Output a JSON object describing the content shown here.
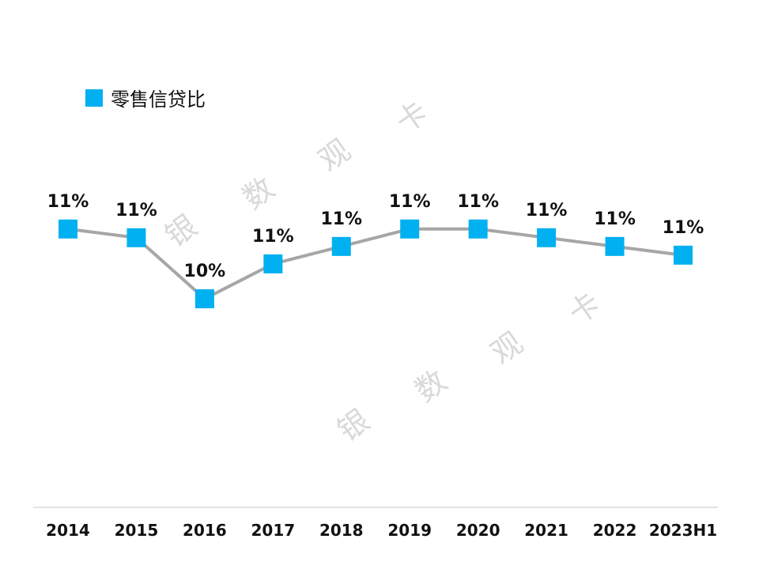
{
  "chart_data": {
    "type": "line",
    "title": "",
    "xlabel": "",
    "ylabel": "",
    "categories": [
      "2014",
      "2015",
      "2016",
      "2017",
      "2018",
      "2019",
      "2020",
      "2021",
      "2022",
      "2023H1"
    ],
    "series": [
      {
        "name": "零售信贷比",
        "values": [
          11.1,
          11.0,
          10.3,
          10.7,
          10.9,
          11.1,
          11.1,
          11.0,
          10.9,
          10.8
        ],
        "data_labels": [
          "11%",
          "11%",
          "10%",
          "11%",
          "11%",
          "11%",
          "11%",
          "11%",
          "11%",
          "11%"
        ],
        "color": "#00b0f0",
        "line_color": "#a6a6a6"
      }
    ],
    "ylim": [
      8,
      13
    ],
    "grid": false,
    "legend_position": "top-left"
  },
  "watermark": {
    "chars_upper": [
      "银",
      "数",
      "观",
      "卡"
    ],
    "chars_lower": [
      "银",
      "数",
      "观",
      "卡"
    ]
  }
}
